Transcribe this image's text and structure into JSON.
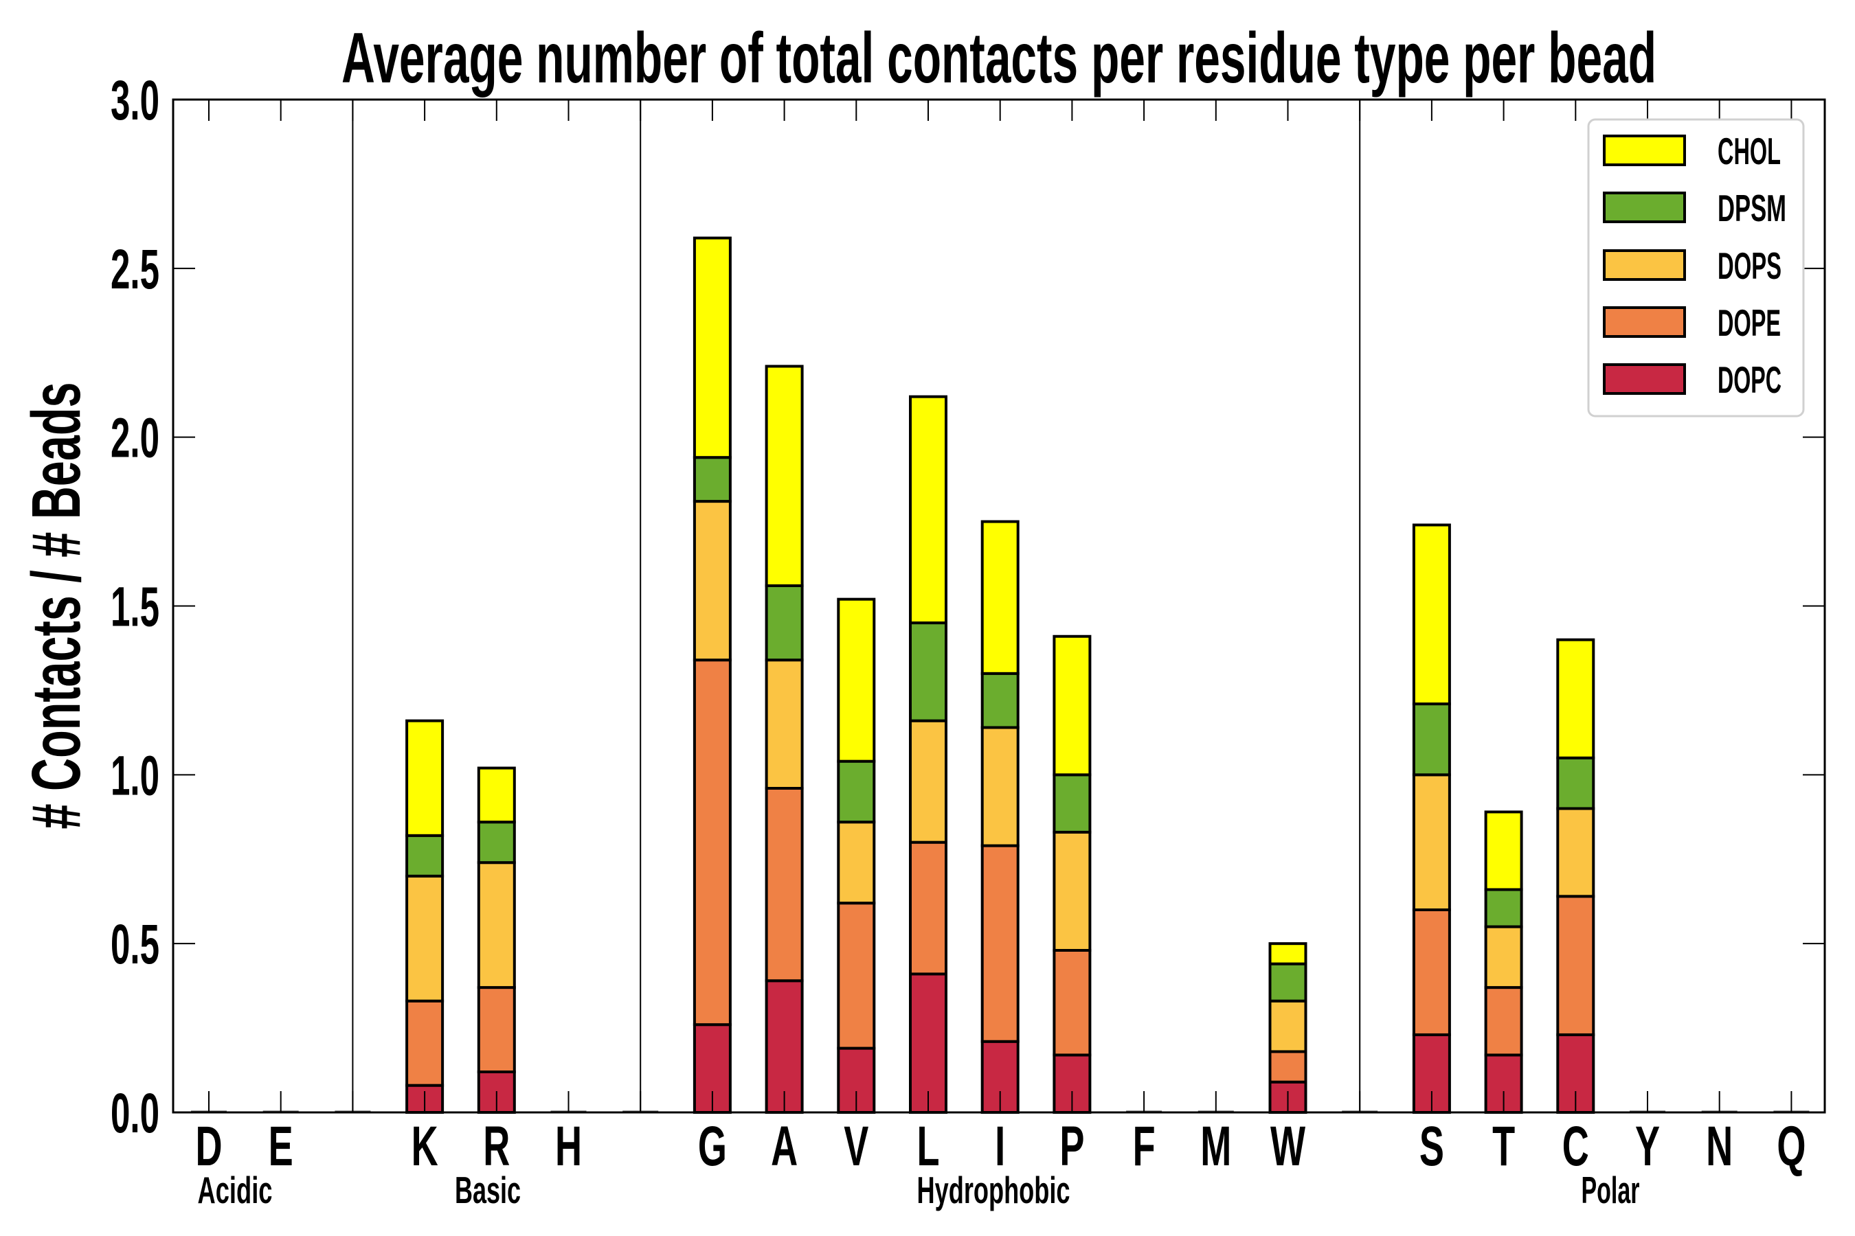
{
  "chart_data": {
    "type": "bar",
    "stacked": true,
    "title": "Average number of total contacts per residue type per bead",
    "xlabel": "",
    "ylabel": "# Contacts / # Beads",
    "ylim": [
      0.0,
      3.0
    ],
    "yticks": [
      0.0,
      0.5,
      1.0,
      1.5,
      2.0,
      2.5,
      3.0
    ],
    "ytick_labels": [
      "0.0",
      "0.5",
      "1.0",
      "1.5",
      "2.0",
      "2.5",
      "3.0"
    ],
    "grid": false,
    "legend_position": "top-right",
    "categories": [
      "D",
      "E",
      "K",
      "R",
      "H",
      "G",
      "A",
      "V",
      "L",
      "I",
      "P",
      "F",
      "M",
      "W",
      "S",
      "T",
      "C",
      "Y",
      "N",
      "Q"
    ],
    "groups": [
      {
        "name": "Acidic",
        "members": [
          "D",
          "E"
        ]
      },
      {
        "name": "Basic",
        "members": [
          "K",
          "R",
          "H"
        ]
      },
      {
        "name": "Hydrophobic",
        "members": [
          "G",
          "A",
          "V",
          "L",
          "I",
          "P",
          "F",
          "M",
          "W"
        ]
      },
      {
        "name": "Polar",
        "members": [
          "S",
          "T",
          "C",
          "Y",
          "N",
          "Q"
        ]
      }
    ],
    "series": [
      {
        "name": "CHOL",
        "color": "#FFFF00",
        "values": [
          0,
          0,
          0.34,
          0.16,
          0,
          0.65,
          0.65,
          0.48,
          0.67,
          0.45,
          0.41,
          0,
          0,
          0.06,
          0.53,
          0.23,
          0.35,
          0,
          0,
          0
        ]
      },
      {
        "name": "DPSM",
        "color": "#6BAD2E",
        "values": [
          0,
          0,
          0.12,
          0.12,
          0,
          0.13,
          0.22,
          0.18,
          0.29,
          0.16,
          0.17,
          0,
          0,
          0.11,
          0.21,
          0.11,
          0.15,
          0,
          0,
          0
        ]
      },
      {
        "name": "DOPS",
        "color": "#FBC443",
        "values": [
          0,
          0,
          0.37,
          0.37,
          0,
          0.47,
          0.38,
          0.24,
          0.36,
          0.35,
          0.35,
          0,
          0,
          0.15,
          0.4,
          0.18,
          0.26,
          0,
          0,
          0
        ]
      },
      {
        "name": "DOPE",
        "color": "#EF8145",
        "values": [
          0,
          0,
          0.25,
          0.25,
          0,
          1.08,
          0.57,
          0.43,
          0.39,
          0.58,
          0.31,
          0,
          0,
          0.09,
          0.37,
          0.2,
          0.41,
          0,
          0,
          0
        ]
      },
      {
        "name": "DOPC",
        "color": "#C82843",
        "values": [
          0,
          0,
          0.08,
          0.12,
          0,
          0.26,
          0.39,
          0.19,
          0.41,
          0.21,
          0.17,
          0,
          0,
          0.09,
          0.23,
          0.17,
          0.23,
          0,
          0,
          0
        ]
      }
    ]
  }
}
